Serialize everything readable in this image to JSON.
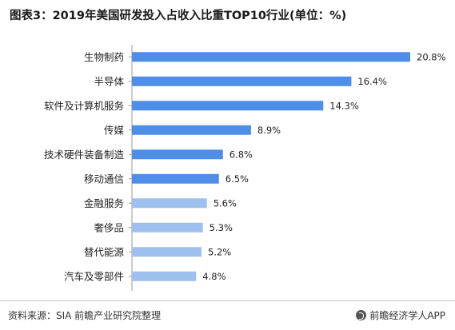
{
  "title": "图表3：2019年美国研发投入占收入比重TOP10行业(单位：%)",
  "source": "资料来源：SIA 前瞻产业研究院整理",
  "brand": "前瞻经济学人APP",
  "colors": {
    "bar": "#4f8ee6",
    "bar_light": "#9fc0ee"
  },
  "chart_data": {
    "type": "bar",
    "orientation": "horizontal",
    "title": "图表3：2019年美国研发投入占收入比重TOP10行业(单位：%)",
    "unit": "%",
    "categories": [
      "生物制药",
      "半导体",
      "软件及计算机服务",
      "传媒",
      "技术硬件装备制造",
      "移动通信",
      "金融服务",
      "奢侈品",
      "替代能源",
      "汽车及零部件"
    ],
    "values": [
      20.8,
      16.4,
      14.3,
      8.9,
      6.8,
      6.5,
      5.6,
      5.3,
      5.2,
      4.8
    ],
    "labels": [
      "20.8%",
      "16.4%",
      "14.3%",
      "8.9%",
      "6.8%",
      "6.5%",
      "5.6%",
      "5.3%",
      "5.2%",
      "4.8%"
    ],
    "xlim": [
      0,
      20.8
    ],
    "grid": false,
    "legend": "none"
  }
}
